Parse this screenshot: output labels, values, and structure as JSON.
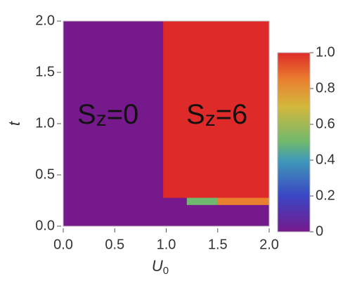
{
  "chart_data": {
    "type": "heatmap",
    "xlabel": [
      "U",
      "0"
    ],
    "ylabel": "t",
    "xbins": [
      0,
      0.97,
      1.2,
      1.5,
      2.0
    ],
    "ybins": [
      0,
      0.21,
      0.28,
      2.0
    ],
    "z": [
      [
        0,
        0,
        0,
        0
      ],
      [
        0,
        0,
        0.5,
        0.85
      ],
      [
        0,
        1,
        1,
        1
      ]
    ],
    "xlim": [
      0,
      2
    ],
    "ylim": [
      0,
      2
    ],
    "xticks": [
      {
        "value": 0,
        "label": "0.0"
      },
      {
        "value": 0.5,
        "label": "0.5"
      },
      {
        "value": 1,
        "label": "1.0"
      },
      {
        "value": 1.5,
        "label": "1.5"
      },
      {
        "value": 2,
        "label": "2.0"
      }
    ],
    "yticks": [
      {
        "value": 0,
        "label": "0.0"
      },
      {
        "value": 0.5,
        "label": "0.5"
      },
      {
        "value": 1,
        "label": "1.0"
      },
      {
        "value": 1.5,
        "label": "1.5"
      },
      {
        "value": 2,
        "label": "2.0"
      }
    ],
    "zlim": [
      0,
      1
    ],
    "zticks": [
      0,
      0.2,
      0.4,
      0.6,
      0.8,
      {
        "value": 1,
        "label": "1.0"
      }
    ],
    "colorscale": [
      [
        0,
        "#76198c"
      ],
      [
        0.2,
        "#3a46c4"
      ],
      [
        0.4,
        "#3f9ab8"
      ],
      [
        0.5,
        "#6fb86e"
      ],
      [
        0.7,
        "#d4b73c"
      ],
      [
        0.85,
        "#ea7f2e"
      ],
      [
        1,
        "#de2b2a"
      ]
    ],
    "annotations": [
      [
        "S",
        "z",
        "=0"
      ],
      [
        "S",
        "z",
        "=6"
      ]
    ]
  }
}
